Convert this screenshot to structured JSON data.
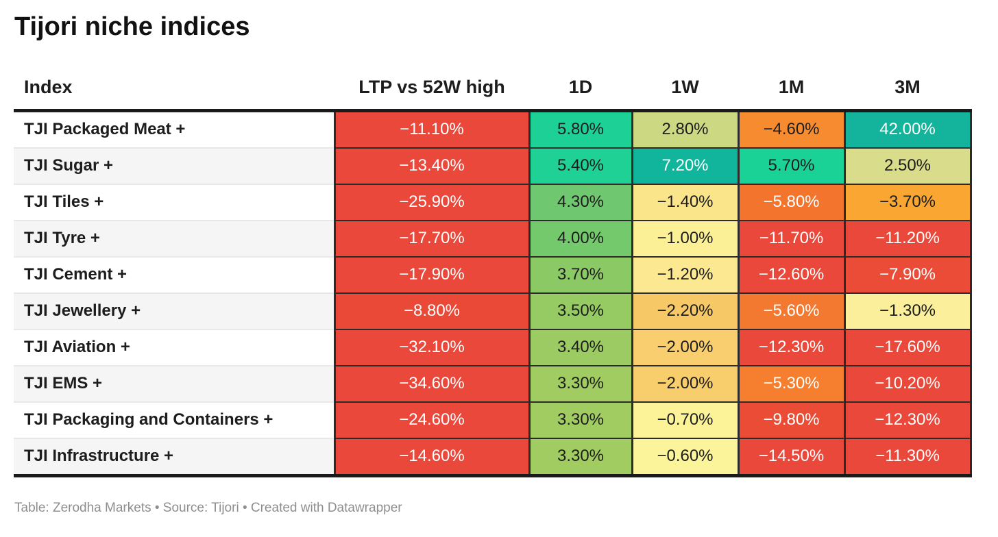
{
  "title": "Tijori niche indices",
  "footer": {
    "text": "Table: Zerodha Markets • Source: Tijori • Created with Datawrapper"
  },
  "colors": {
    "page_background": "#ffffff",
    "rule_dark": "#1a1a1a",
    "cell_border": "#2b2b2b",
    "row_stripe": "#f5f5f5",
    "row_separator": "#e8e8e8",
    "footer_text": "#8e8e8e",
    "scale_red": "#e9483a",
    "scale_orange": "#f3742c",
    "scale_amber": "#f9a632",
    "scale_yellow": "#fcf097",
    "scale_yellowgreen": "#cdd883",
    "scale_green": "#6fc86f",
    "scale_teal": "#1dd095",
    "scale_teal_dark": "#14b39b"
  },
  "table": {
    "columns": [
      {
        "label": "Index"
      },
      {
        "label": "LTP vs 52W high"
      },
      {
        "label": "1D"
      },
      {
        "label": "1W"
      },
      {
        "label": "1M"
      },
      {
        "label": "3M"
      }
    ],
    "rows": [
      {
        "index": "TJI Packaged Meat +",
        "cells": [
          {
            "v": "−11.10%",
            "bg": "#e9483a",
            "fg": "#ffffff"
          },
          {
            "v": "5.80%",
            "bg": "#1dd095",
            "fg": "#1d1d1d"
          },
          {
            "v": "2.80%",
            "bg": "#cdd883",
            "fg": "#1d1d1d"
          },
          {
            "v": "−4.60%",
            "bg": "#f78b30",
            "fg": "#1d1d1d"
          },
          {
            "v": "42.00%",
            "bg": "#14b39b",
            "fg": "#ffffff"
          }
        ]
      },
      {
        "index": "TJI Sugar +",
        "cells": [
          {
            "v": "−13.40%",
            "bg": "#e9483a",
            "fg": "#ffffff"
          },
          {
            "v": "5.40%",
            "bg": "#20d196",
            "fg": "#1d1d1d"
          },
          {
            "v": "7.20%",
            "bg": "#10b59c",
            "fg": "#ffffff"
          },
          {
            "v": "5.70%",
            "bg": "#1bd296",
            "fg": "#1d1d1d"
          },
          {
            "v": "2.50%",
            "bg": "#d9dc8a",
            "fg": "#1d1d1d"
          }
        ]
      },
      {
        "index": "TJI Tiles +",
        "cells": [
          {
            "v": "−25.90%",
            "bg": "#e9483a",
            "fg": "#ffffff"
          },
          {
            "v": "4.30%",
            "bg": "#6fc86f",
            "fg": "#1d1d1d"
          },
          {
            "v": "−1.40%",
            "bg": "#fbe58b",
            "fg": "#1d1d1d"
          },
          {
            "v": "−5.80%",
            "bg": "#f3742c",
            "fg": "#ffffff"
          },
          {
            "v": "−3.70%",
            "bg": "#f9a632",
            "fg": "#1d1d1d"
          }
        ]
      },
      {
        "index": "TJI Tyre +",
        "cells": [
          {
            "v": "−17.70%",
            "bg": "#e9483a",
            "fg": "#ffffff"
          },
          {
            "v": "4.00%",
            "bg": "#75c96d",
            "fg": "#1d1d1d"
          },
          {
            "v": "−1.00%",
            "bg": "#fcf097",
            "fg": "#1d1d1d"
          },
          {
            "v": "−11.70%",
            "bg": "#e9483a",
            "fg": "#ffffff"
          },
          {
            "v": "−11.20%",
            "bg": "#e9483a",
            "fg": "#ffffff"
          }
        ]
      },
      {
        "index": "TJI Cement +",
        "cells": [
          {
            "v": "−17.90%",
            "bg": "#e9483a",
            "fg": "#ffffff"
          },
          {
            "v": "3.70%",
            "bg": "#8bc965",
            "fg": "#1d1d1d"
          },
          {
            "v": "−1.20%",
            "bg": "#fbe890",
            "fg": "#1d1d1d"
          },
          {
            "v": "−12.60%",
            "bg": "#e9483a",
            "fg": "#ffffff"
          },
          {
            "v": "−7.90%",
            "bg": "#ea4c38",
            "fg": "#ffffff"
          }
        ]
      },
      {
        "index": "TJI Jewellery +",
        "cells": [
          {
            "v": "−8.80%",
            "bg": "#ea4937",
            "fg": "#ffffff"
          },
          {
            "v": "3.50%",
            "bg": "#96ca63",
            "fg": "#1d1d1d"
          },
          {
            "v": "−2.20%",
            "bg": "#f7c966",
            "fg": "#1d1d1d"
          },
          {
            "v": "−5.60%",
            "bg": "#f37930",
            "fg": "#ffffff"
          },
          {
            "v": "−1.30%",
            "bg": "#fbef9c",
            "fg": "#1d1d1d"
          }
        ]
      },
      {
        "index": "TJI Aviation +",
        "cells": [
          {
            "v": "−32.10%",
            "bg": "#e9483a",
            "fg": "#ffffff"
          },
          {
            "v": "3.40%",
            "bg": "#9bcb62",
            "fg": "#1d1d1d"
          },
          {
            "v": "−2.00%",
            "bg": "#f9ce6e",
            "fg": "#1d1d1d"
          },
          {
            "v": "−12.30%",
            "bg": "#e9483a",
            "fg": "#ffffff"
          },
          {
            "v": "−17.60%",
            "bg": "#e9483a",
            "fg": "#ffffff"
          }
        ]
      },
      {
        "index": "TJI EMS +",
        "cells": [
          {
            "v": "−34.60%",
            "bg": "#e9483a",
            "fg": "#ffffff"
          },
          {
            "v": "3.30%",
            "bg": "#a1cc61",
            "fg": "#1d1d1d"
          },
          {
            "v": "−2.00%",
            "bg": "#f8cd6b",
            "fg": "#1d1d1d"
          },
          {
            "v": "−5.30%",
            "bg": "#f57f2e",
            "fg": "#ffffff"
          },
          {
            "v": "−10.20%",
            "bg": "#e9483a",
            "fg": "#ffffff"
          }
        ]
      },
      {
        "index": "TJI Packaging and Containers +",
        "cells": [
          {
            "v": "−24.60%",
            "bg": "#e9483a",
            "fg": "#ffffff"
          },
          {
            "v": "3.30%",
            "bg": "#a1cc61",
            "fg": "#1d1d1d"
          },
          {
            "v": "−0.70%",
            "bg": "#fcf399",
            "fg": "#1d1d1d"
          },
          {
            "v": "−9.80%",
            "bg": "#ea4c36",
            "fg": "#ffffff"
          },
          {
            "v": "−12.30%",
            "bg": "#e9483a",
            "fg": "#ffffff"
          }
        ]
      },
      {
        "index": "TJI Infrastructure +",
        "cells": [
          {
            "v": "−14.60%",
            "bg": "#e9483a",
            "fg": "#ffffff"
          },
          {
            "v": "3.30%",
            "bg": "#a1cc61",
            "fg": "#1d1d1d"
          },
          {
            "v": "−0.60%",
            "bg": "#fcf49b",
            "fg": "#1d1d1d"
          },
          {
            "v": "−14.50%",
            "bg": "#e9483a",
            "fg": "#ffffff"
          },
          {
            "v": "−11.30%",
            "bg": "#e9483a",
            "fg": "#ffffff"
          }
        ]
      }
    ]
  },
  "chart_data": {
    "type": "table",
    "title": "Tijori niche indices",
    "columns": [
      "Index",
      "LTP vs 52W high",
      "1D",
      "1W",
      "1M",
      "3M"
    ],
    "rows": [
      [
        "TJI Packaged Meat +",
        -11.1,
        5.8,
        2.8,
        -4.6,
        42.0
      ],
      [
        "TJI Sugar +",
        -13.4,
        5.4,
        7.2,
        5.7,
        2.5
      ],
      [
        "TJI Tiles +",
        -25.9,
        4.3,
        -1.4,
        -5.8,
        -3.7
      ],
      [
        "TJI Tyre +",
        -17.7,
        4.0,
        -1.0,
        -11.7,
        -11.2
      ],
      [
        "TJI Cement +",
        -17.9,
        3.7,
        -1.2,
        -12.6,
        -7.9
      ],
      [
        "TJI Jewellery +",
        -8.8,
        3.5,
        -2.2,
        -5.6,
        -1.3
      ],
      [
        "TJI Aviation +",
        -32.1,
        3.4,
        -2.0,
        -12.3,
        -17.6
      ],
      [
        "TJI EMS +",
        -34.6,
        3.3,
        -2.0,
        -5.3,
        -10.2
      ],
      [
        "TJI Packaging and Containers +",
        -24.6,
        3.3,
        -0.7,
        -9.8,
        -12.3
      ],
      [
        "TJI Infrastructure +",
        -14.6,
        3.3,
        -0.6,
        -14.5,
        -11.3
      ]
    ],
    "units": "percent",
    "style": "heatmap cells, red (negative) to yellow to green/teal (positive)",
    "source_line": "Table: Zerodha Markets • Source: Tijori • Created with Datawrapper"
  }
}
